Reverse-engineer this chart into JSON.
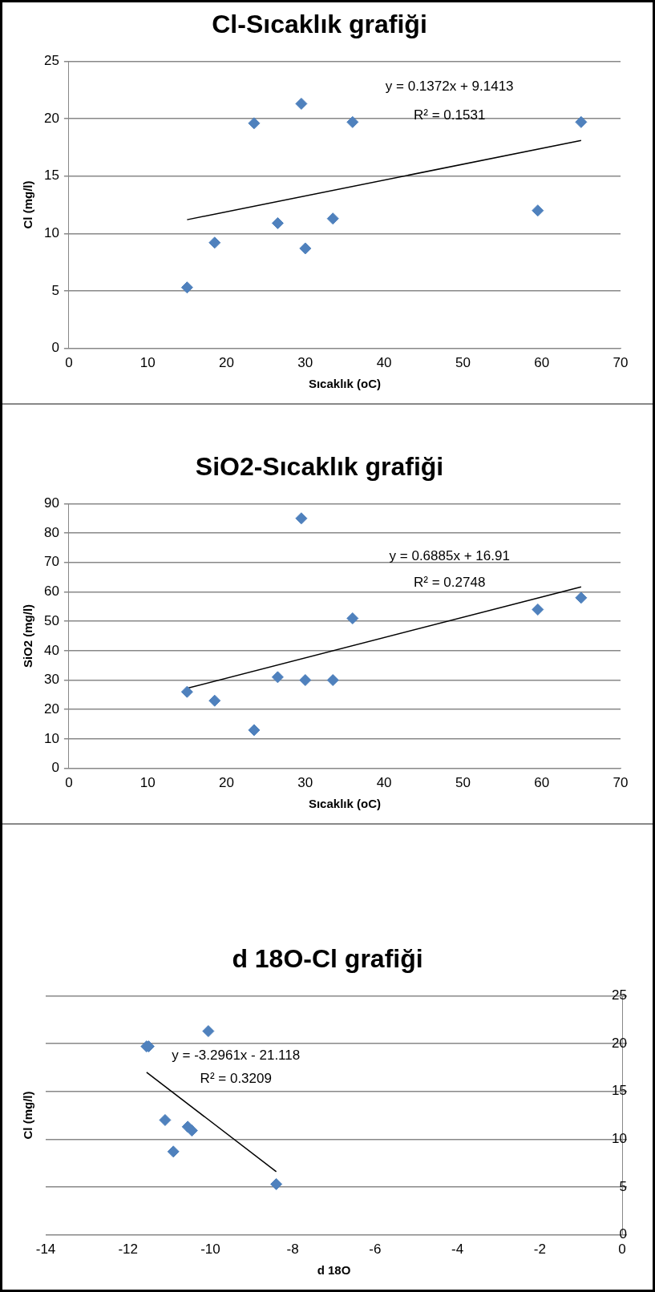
{
  "chart_data": [
    {
      "type": "scatter",
      "title": "Cl-Sıcaklık grafiği",
      "xlabel": "Sıcaklık (oC)",
      "ylabel": "Cl (mg/l)",
      "xlim": [
        0,
        70
      ],
      "xticks": [
        0,
        10,
        20,
        30,
        40,
        50,
        60,
        70
      ],
      "ylim": [
        0,
        25
      ],
      "yticks": [
        0,
        5,
        10,
        15,
        20,
        25
      ],
      "grid": "y",
      "legend": false,
      "series": [
        {
          "type": "scatter",
          "marker": "diamond",
          "color": "#4f81bd",
          "x": [
            15,
            18.5,
            23.5,
            26.5,
            29.5,
            30,
            33.5,
            36,
            59.5,
            65
          ],
          "values": [
            5.3,
            9.2,
            19.6,
            10.9,
            21.3,
            8.7,
            11.3,
            19.7,
            12.0,
            19.7
          ]
        },
        {
          "type": "line",
          "marker": "none",
          "color": "#000000",
          "x": [
            15,
            65
          ],
          "values": [
            11.2,
            18.1
          ]
        }
      ],
      "annotations": [
        "y = 0.1372x + 9.1413",
        "R² = 0.1531"
      ]
    },
    {
      "type": "scatter",
      "title": "SiO2-Sıcaklık grafiği",
      "xlabel": "Sıcaklık (oC)",
      "ylabel": "SiO2 (mg/l)",
      "xlim": [
        0,
        70
      ],
      "xticks": [
        0,
        10,
        20,
        30,
        40,
        50,
        60,
        70
      ],
      "ylim": [
        0,
        90
      ],
      "yticks": [
        0,
        10,
        20,
        30,
        40,
        50,
        60,
        70,
        80,
        90
      ],
      "grid": "y",
      "legend": false,
      "series": [
        {
          "type": "scatter",
          "marker": "diamond",
          "color": "#4f81bd",
          "x": [
            15,
            18.5,
            23.5,
            26.5,
            29.5,
            30,
            33.5,
            36,
            59.5,
            65
          ],
          "values": [
            26,
            23,
            13,
            31,
            85,
            30,
            30,
            51,
            54,
            58
          ]
        },
        {
          "type": "line",
          "marker": "none",
          "color": "#000000",
          "x": [
            15,
            65
          ],
          "values": [
            27.2,
            61.7
          ]
        }
      ],
      "annotations": [
        "y = 0.6885x + 16.91",
        "R² = 0.2748"
      ]
    },
    {
      "type": "scatter",
      "title": "d 18O-Cl grafiği",
      "xlabel": "d 18O",
      "ylabel": "Cl (mg/l)",
      "xlim": [
        -14,
        0
      ],
      "xticks": [
        -14,
        -12,
        -10,
        -8,
        -6,
        -4,
        -2,
        0
      ],
      "y2lim": [
        0,
        25
      ],
      "y2ticks": [
        0,
        5,
        10,
        15,
        20,
        25
      ],
      "grid": "y",
      "legend": false,
      "series": [
        {
          "type": "scatter",
          "axis": "y2",
          "marker": "diamond",
          "color": "#4f81bd",
          "x": [
            -11.55,
            -11.5,
            -10.05,
            -11.1,
            -10.9,
            -10.55,
            -10.45,
            -8.4
          ],
          "values": [
            19.7,
            19.7,
            21.3,
            12.0,
            8.7,
            11.3,
            10.9,
            5.3
          ]
        },
        {
          "type": "line",
          "axis": "y2",
          "marker": "none",
          "color": "#000000",
          "x": [
            -11.55,
            -8.4
          ],
          "values": [
            17.0,
            6.6
          ]
        }
      ],
      "annotations": [
        "y = -3.2961x - 21.118",
        "R² = 0.3209"
      ]
    }
  ]
}
